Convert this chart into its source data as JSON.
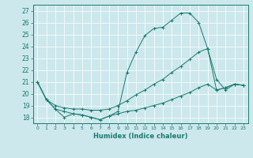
{
  "xlabel": "Humidex (Indice chaleur)",
  "bg_color": "#cce8ec",
  "line_color": "#1a7a6e",
  "x_ticks": [
    0,
    1,
    2,
    3,
    4,
    5,
    6,
    7,
    8,
    9,
    10,
    11,
    12,
    13,
    14,
    15,
    16,
    17,
    18,
    19,
    20,
    21,
    22,
    23
  ],
  "ylim": [
    17.5,
    27.5
  ],
  "xlim": [
    -0.5,
    23.5
  ],
  "yticks": [
    18,
    19,
    20,
    21,
    22,
    23,
    24,
    25,
    26,
    27
  ],
  "line1_y": [
    21.0,
    19.5,
    18.7,
    18.0,
    18.3,
    18.2,
    18.0,
    17.8,
    18.1,
    18.5,
    21.8,
    23.5,
    24.9,
    25.5,
    25.6,
    26.2,
    26.8,
    26.8,
    26.0,
    23.8,
    21.2,
    20.3,
    20.8,
    20.7
  ],
  "line2_y": [
    21.0,
    19.5,
    19.0,
    18.8,
    18.7,
    18.7,
    18.6,
    18.6,
    18.7,
    19.0,
    19.4,
    19.9,
    20.3,
    20.8,
    21.2,
    21.8,
    22.3,
    22.9,
    23.5,
    23.8,
    20.3,
    20.5,
    20.8,
    20.7
  ],
  "line3_y": [
    21.0,
    19.5,
    18.7,
    18.5,
    18.3,
    18.2,
    18.0,
    17.8,
    18.1,
    18.3,
    18.5,
    18.6,
    18.8,
    19.0,
    19.2,
    19.5,
    19.8,
    20.1,
    20.5,
    20.8,
    20.3,
    20.5,
    20.8,
    20.7
  ]
}
